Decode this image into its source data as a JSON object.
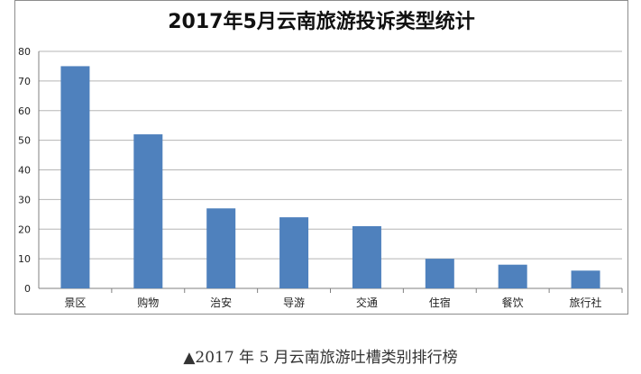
{
  "chart_data": {
    "type": "bar",
    "title": "2017年5月云南旅游投诉类型统计",
    "categories": [
      "景区",
      "购物",
      "治安",
      "导游",
      "交通",
      "住宿",
      "餐饮",
      "旅行社"
    ],
    "values": [
      75,
      52,
      27,
      24,
      21,
      10,
      8,
      6
    ],
    "ylim": [
      0,
      80
    ],
    "yticks": [
      0,
      10,
      20,
      30,
      40,
      50,
      60,
      70,
      80
    ],
    "grid": true,
    "xlabel": "",
    "ylabel": "",
    "bar_color": "#4f81bd"
  },
  "caption": "▲2017 年 5 月云南旅游吐槽类别排行榜"
}
